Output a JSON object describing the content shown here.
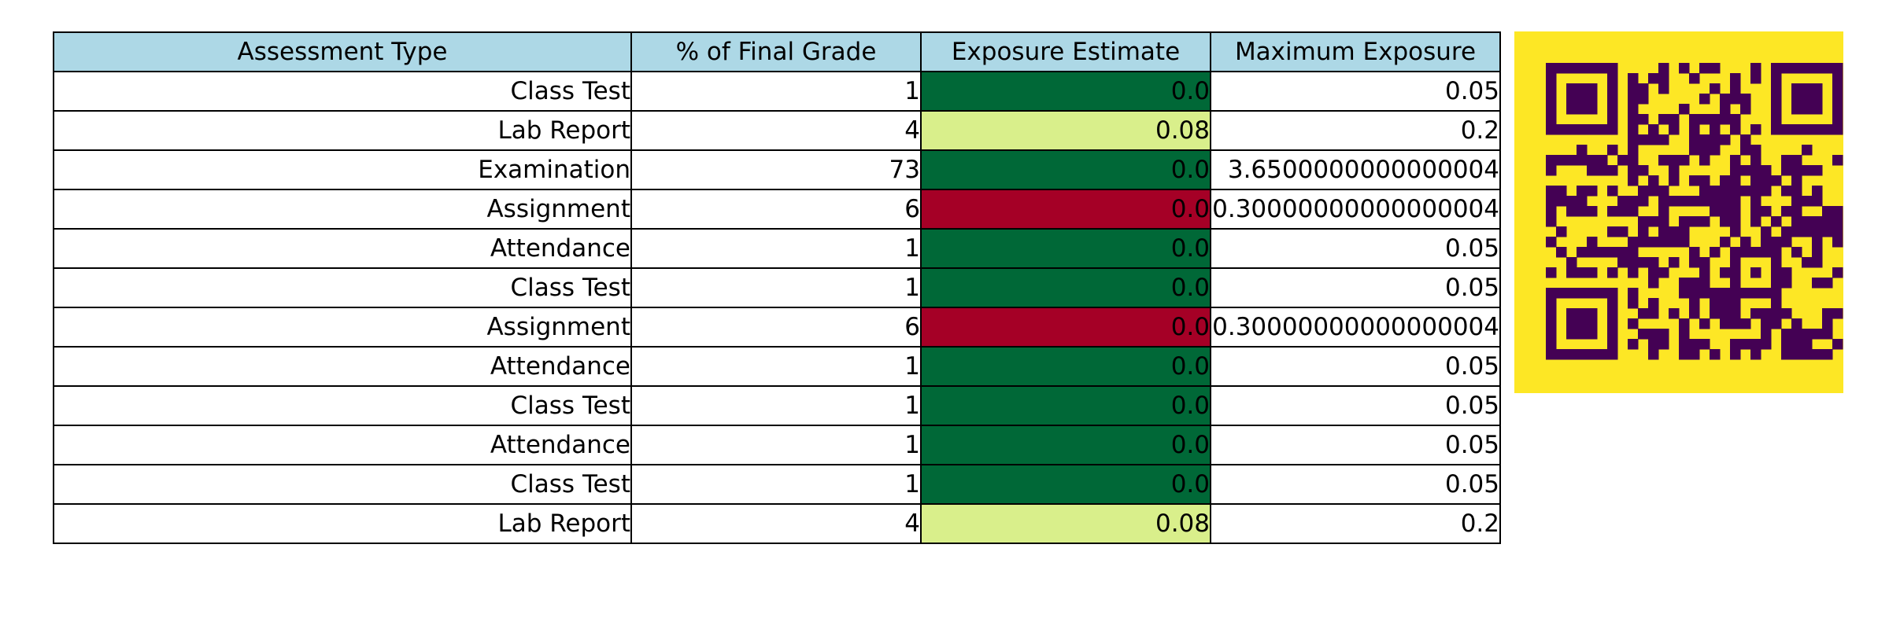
{
  "chart_data": {
    "type": "table",
    "columns": [
      "Assessment Type",
      "% of Final Grade",
      "Exposure Estimate",
      "Maximum Exposure"
    ],
    "rows": [
      {
        "type": "Class Test",
        "pct": "1",
        "exposure": "0.0",
        "max": "0.05",
        "exposure_color": "#006837"
      },
      {
        "type": "Lab Report",
        "pct": "4",
        "exposure": "0.08",
        "max": "0.2",
        "exposure_color": "#d9ef8b"
      },
      {
        "type": "Examination",
        "pct": "73",
        "exposure": "0.0",
        "max": "3.6500000000000004",
        "exposure_color": "#006837"
      },
      {
        "type": "Assignment",
        "pct": "6",
        "exposure": "0.0",
        "max": "0.30000000000000004",
        "exposure_color": "#a50026"
      },
      {
        "type": "Attendance",
        "pct": "1",
        "exposure": "0.0",
        "max": "0.05",
        "exposure_color": "#006837"
      },
      {
        "type": "Class Test",
        "pct": "1",
        "exposure": "0.0",
        "max": "0.05",
        "exposure_color": "#006837"
      },
      {
        "type": "Assignment",
        "pct": "6",
        "exposure": "0.0",
        "max": "0.30000000000000004",
        "exposure_color": "#a50026"
      },
      {
        "type": "Attendance",
        "pct": "1",
        "exposure": "0.0",
        "max": "0.05",
        "exposure_color": "#006837"
      },
      {
        "type": "Class Test",
        "pct": "1",
        "exposure": "0.0",
        "max": "0.05",
        "exposure_color": "#006837"
      },
      {
        "type": "Attendance",
        "pct": "1",
        "exposure": "0.0",
        "max": "0.05",
        "exposure_color": "#006837"
      },
      {
        "type": "Class Test",
        "pct": "1",
        "exposure": "0.0",
        "max": "0.05",
        "exposure_color": "#006837"
      },
      {
        "type": "Lab Report",
        "pct": "4",
        "exposure": "0.08",
        "max": "0.2",
        "exposure_color": "#d9ef8b"
      }
    ],
    "header_color": "#add8e6"
  },
  "qr_code": {
    "icon": "qr-code-icon",
    "background_color": "#fde725",
    "module_color": "#440154"
  }
}
